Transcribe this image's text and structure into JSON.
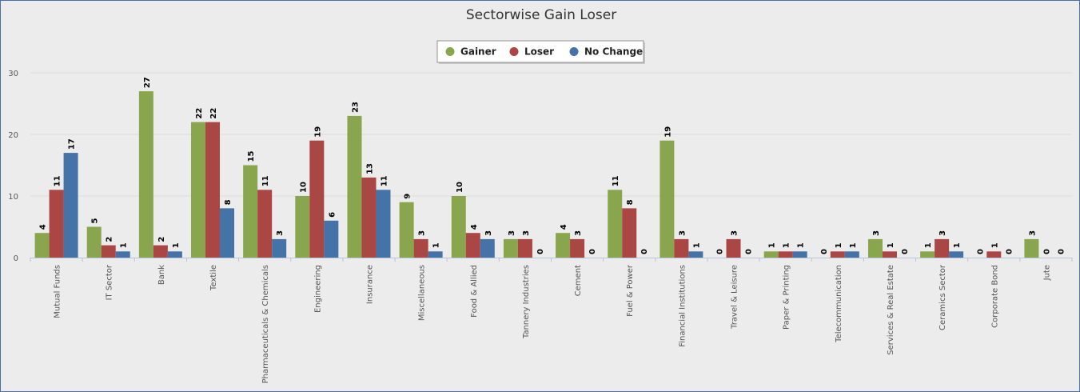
{
  "chart_data": {
    "type": "bar",
    "title": "Sectorwise Gain Loser",
    "xlabel": "",
    "ylabel": "",
    "ylim": [
      0,
      30
    ],
    "yticks": [
      0,
      10,
      20,
      30
    ],
    "grid": true,
    "legend_position": "top-center",
    "categories": [
      "Mutual Funds",
      "IT Sector",
      "Bank",
      "Textile",
      "Pharmaceuticals & Chemicals",
      "Engineering",
      "Insurance",
      "Miscellaneous",
      "Food & Allied",
      "Tannery Industries",
      "Cement",
      "Fuel & Power",
      "Financial Institutions",
      "Travel & Leisure",
      "Paper & Printing",
      "Telecommunication",
      "Services & Real Estate",
      "Ceramics Sector",
      "Corporate Bond",
      "Jute"
    ],
    "series": [
      {
        "name": "Gainer",
        "color": "#89a54e",
        "values": [
          4,
          5,
          27,
          22,
          15,
          10,
          23,
          9,
          10,
          3,
          4,
          11,
          19,
          0,
          1,
          0,
          3,
          1,
          0,
          3
        ]
      },
      {
        "name": "Loser",
        "color": "#aa4643",
        "values": [
          11,
          2,
          2,
          22,
          11,
          19,
          13,
          3,
          4,
          3,
          3,
          8,
          3,
          3,
          1,
          1,
          1,
          3,
          1,
          0
        ]
      },
      {
        "name": "No Change",
        "color": "#4572a7",
        "values": [
          17,
          1,
          1,
          8,
          3,
          6,
          11,
          1,
          3,
          0,
          0,
          0,
          1,
          0,
          1,
          1,
          0,
          1,
          0,
          0
        ]
      }
    ]
  }
}
